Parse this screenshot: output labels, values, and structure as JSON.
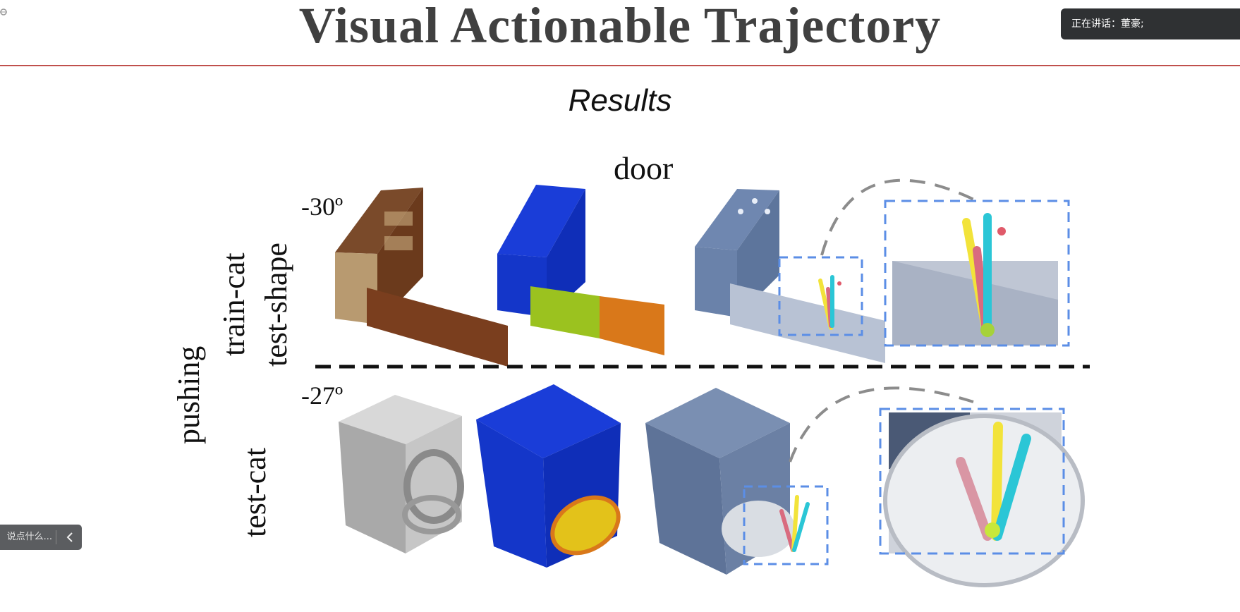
{
  "slide": {
    "title": "Visual Actionable Trajectory",
    "subtitle": "Results"
  },
  "figure": {
    "category": "door",
    "action": "pushing",
    "rows": [
      {
        "angle": "-30º",
        "labels": [
          "train-cat",
          "test-shape"
        ]
      },
      {
        "angle": "-27º",
        "labels": [
          "test-cat"
        ]
      }
    ]
  },
  "overlay": {
    "speaking_label": "正在讲话：董豪;",
    "comment_placeholder": "说点什么...",
    "toggle_icon": "chevron-left-icon"
  },
  "colors": {
    "title_rule": "#c0504d",
    "dashed_box": "#5b8ee6",
    "arc": "#8c8c8c"
  }
}
